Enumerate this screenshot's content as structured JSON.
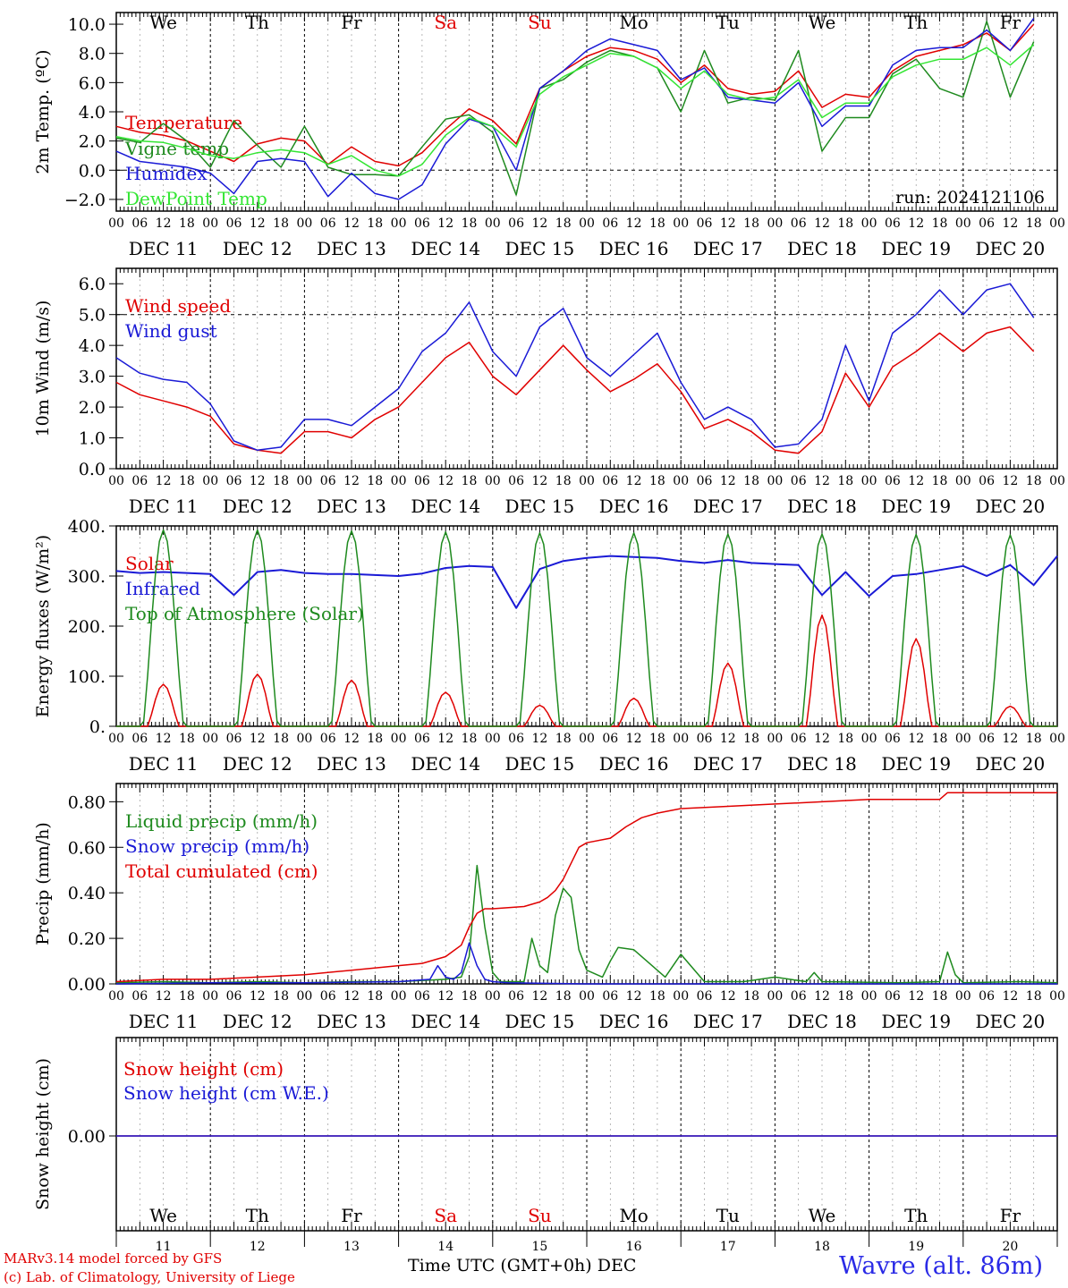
{
  "run_label": "run: 2024121106",
  "days": {
    "weekday_labels": [
      "We",
      "Th",
      "Fr",
      "Sa",
      "Su",
      "Mo",
      "Tu",
      "We",
      "Th",
      "Fr"
    ],
    "weekend_indices": [
      3,
      4
    ],
    "date_labels": [
      "DEC 11",
      "DEC 12",
      "DEC 13",
      "DEC 14",
      "DEC 15",
      "DEC 16",
      "DEC 17",
      "DEC 18",
      "DEC 19",
      "DEC 20"
    ],
    "hour_labels": [
      "00",
      "06",
      "12",
      "18"
    ],
    "day_numbers": [
      "11",
      "12",
      "13",
      "14",
      "15",
      "16",
      "17",
      "18",
      "19",
      "20"
    ]
  },
  "footer": {
    "credit_line1": "MARv3.14 model forced by GFS",
    "credit_line2": "(c) Lab. of Climatology, University of Liege",
    "axis_title": "Time UTC (GMT+0h)",
    "month": "DEC",
    "station": "Wavre (alt. 86m)"
  },
  "colors": {
    "red": "#e00000",
    "blue": "#1a1ad6",
    "dark_green": "#1e8a1e",
    "light_green": "#33e633"
  },
  "chart_data": [
    {
      "type": "line",
      "ylabel": "2m Temp. (ºC)",
      "ylim": [
        -2.8,
        10.8
      ],
      "yticks": [
        "−2.0",
        "0.0",
        "2.0",
        "4.0",
        "6.0",
        "8.0",
        "10.0"
      ],
      "ytick_values": [
        -2,
        0,
        2,
        4,
        6,
        8,
        10
      ],
      "reference_line": 0,
      "x_unit": "hours since DEC 11 00 UTC",
      "series": [
        {
          "name": "Temperature",
          "color": "#e00000",
          "x": [
            0,
            6,
            12,
            18,
            24,
            30,
            36,
            42,
            48,
            54,
            60,
            66,
            72,
            78,
            84,
            90,
            96,
            102,
            108,
            114,
            120,
            126,
            132,
            138,
            144,
            150,
            156,
            162,
            168,
            174,
            180,
            186,
            192,
            198,
            204,
            210,
            216,
            222,
            228,
            234
          ],
          "y": [
            3.0,
            2.6,
            2.4,
            2.0,
            1.3,
            0.6,
            1.8,
            2.2,
            2.0,
            0.4,
            1.6,
            0.6,
            0.3,
            1.2,
            2.8,
            4.2,
            3.4,
            1.8,
            5.6,
            6.8,
            7.8,
            8.4,
            8.2,
            7.6,
            6.0,
            7.2,
            5.6,
            5.2,
            5.4,
            6.8,
            4.3,
            5.2,
            5.0,
            6.8,
            7.8,
            8.2,
            8.6,
            9.4,
            8.2,
            10.0
          ]
        },
        {
          "name": "Vigne temp",
          "color": "#1e8a1e",
          "x": [
            0,
            6,
            12,
            18,
            24,
            30,
            36,
            42,
            48,
            54,
            60,
            66,
            72,
            78,
            84,
            90,
            96,
            102,
            108,
            114,
            120,
            126,
            132,
            138,
            144,
            150,
            156,
            162,
            168,
            174,
            180,
            186,
            192,
            198,
            204,
            210,
            216,
            222,
            228,
            234
          ],
          "y": [
            2.2,
            1.9,
            3.2,
            2.0,
            0.2,
            3.4,
            1.7,
            0.2,
            3.0,
            0.2,
            -0.3,
            -0.3,
            -0.4,
            1.6,
            3.5,
            3.8,
            2.6,
            -1.7,
            5.6,
            6.2,
            7.4,
            8.2,
            7.8,
            7.0,
            4.0,
            8.2,
            4.6,
            5.0,
            4.8,
            8.2,
            1.3,
            3.6,
            3.6,
            6.6,
            7.6,
            5.6,
            5.0,
            10.2,
            5.0,
            8.8
          ]
        },
        {
          "name": "Humidex",
          "color": "#1a1ad6",
          "x": [
            0,
            6,
            12,
            18,
            24,
            30,
            36,
            42,
            48,
            54,
            60,
            66,
            72,
            78,
            84,
            90,
            96,
            102,
            108,
            114,
            120,
            126,
            132,
            138,
            144,
            150,
            156,
            162,
            168,
            174,
            180,
            186,
            192,
            198,
            204,
            210,
            216,
            222,
            228,
            234
          ],
          "y": [
            1.3,
            0.6,
            0.4,
            0.2,
            -0.2,
            -1.6,
            0.6,
            0.8,
            0.6,
            -1.8,
            -0.2,
            -1.6,
            -2.0,
            -1.0,
            1.8,
            3.5,
            3.0,
            0.0,
            5.6,
            6.8,
            8.2,
            9.0,
            8.6,
            8.2,
            6.2,
            7.0,
            5.0,
            4.8,
            4.6,
            6.0,
            3.0,
            4.4,
            4.4,
            7.2,
            8.2,
            8.4,
            8.4,
            9.6,
            8.2,
            10.4
          ]
        },
        {
          "name": "DewPoint Temp",
          "color": "#33e633",
          "x": [
            0,
            6,
            12,
            18,
            24,
            30,
            36,
            42,
            48,
            54,
            60,
            66,
            72,
            78,
            84,
            90,
            96,
            102,
            108,
            114,
            120,
            126,
            132,
            138,
            144,
            150,
            156,
            162,
            168,
            174,
            180,
            186,
            192,
            198,
            204,
            210,
            216,
            222,
            228,
            234
          ],
          "y": [
            2.3,
            2.0,
            1.9,
            1.5,
            1.0,
            0.8,
            1.2,
            1.4,
            1.2,
            0.4,
            1.0,
            0.0,
            -0.4,
            0.4,
            2.4,
            3.6,
            3.0,
            1.6,
            5.2,
            6.4,
            7.2,
            8.0,
            7.8,
            7.0,
            5.6,
            6.8,
            5.2,
            4.8,
            5.0,
            6.2,
            3.6,
            4.6,
            4.6,
            6.4,
            7.2,
            7.6,
            7.6,
            8.4,
            7.2,
            8.6
          ]
        }
      ]
    },
    {
      "type": "line",
      "ylabel": "10m Wind (m/s)",
      "ylim": [
        0,
        6.5
      ],
      "yticks": [
        "0.0",
        "1.0",
        "2.0",
        "3.0",
        "4.0",
        "5.0",
        "6.0"
      ],
      "ytick_values": [
        0,
        1,
        2,
        3,
        4,
        5,
        6
      ],
      "reference_line": 5,
      "x_unit": "hours since DEC 11 00 UTC",
      "series": [
        {
          "name": "Wind speed",
          "color": "#e00000",
          "x": [
            0,
            6,
            12,
            18,
            24,
            30,
            36,
            42,
            48,
            54,
            60,
            66,
            72,
            78,
            84,
            90,
            96,
            102,
            108,
            114,
            120,
            126,
            132,
            138,
            144,
            150,
            156,
            162,
            168,
            174,
            180,
            186,
            192,
            198,
            204,
            210,
            216,
            222,
            228,
            234
          ],
          "y": [
            2.8,
            2.4,
            2.2,
            2.0,
            1.7,
            0.8,
            0.6,
            0.5,
            1.2,
            1.2,
            1.0,
            1.6,
            2.0,
            2.8,
            3.6,
            4.1,
            3.0,
            2.4,
            3.2,
            4.0,
            3.2,
            2.5,
            2.9,
            3.4,
            2.5,
            1.3,
            1.6,
            1.2,
            0.6,
            0.5,
            1.2,
            3.1,
            2.0,
            3.3,
            3.8,
            4.4,
            3.8,
            4.4,
            4.6,
            3.8
          ]
        },
        {
          "name": "Wind gust",
          "color": "#1a1ad6",
          "x": [
            0,
            6,
            12,
            18,
            24,
            30,
            36,
            42,
            48,
            54,
            60,
            66,
            72,
            78,
            84,
            90,
            96,
            102,
            108,
            114,
            120,
            126,
            132,
            138,
            144,
            150,
            156,
            162,
            168,
            174,
            180,
            186,
            192,
            198,
            204,
            210,
            216,
            222,
            228,
            234
          ],
          "y": [
            3.6,
            3.1,
            2.9,
            2.8,
            2.1,
            0.9,
            0.6,
            0.7,
            1.6,
            1.6,
            1.4,
            2.0,
            2.6,
            3.8,
            4.4,
            5.4,
            3.8,
            3.0,
            4.6,
            5.2,
            3.6,
            3.0,
            3.7,
            4.4,
            2.8,
            1.6,
            2.0,
            1.6,
            0.7,
            0.8,
            1.6,
            4.0,
            2.2,
            4.4,
            5.0,
            5.8,
            5.0,
            5.8,
            6.0,
            4.9
          ]
        }
      ]
    },
    {
      "type": "line",
      "ylabel": "Energy fluxes (W/m²)",
      "ylim": [
        0,
        400
      ],
      "yticks": [
        "0.",
        "100.",
        "200.",
        "300.",
        "400."
      ],
      "ytick_values": [
        0,
        100,
        200,
        300,
        400
      ],
      "x_unit": "hours since DEC 11 00 UTC",
      "series": [
        {
          "name": "Solar",
          "color": "#e00000",
          "daily_peak_hour": 12,
          "daily_peak_values": [
            84,
            104,
            92,
            68,
            42,
            56,
            126,
            222,
            175,
            40
          ]
        },
        {
          "name": "Infrared",
          "color": "#1a1ad6",
          "x": [
            0,
            6,
            12,
            18,
            24,
            30,
            36,
            42,
            48,
            54,
            60,
            66,
            72,
            78,
            84,
            90,
            96,
            102,
            108,
            114,
            120,
            126,
            132,
            138,
            144,
            150,
            156,
            162,
            168,
            174,
            180,
            186,
            192,
            198,
            204,
            210,
            216,
            222,
            228,
            234,
            240
          ],
          "y": [
            310,
            306,
            308,
            306,
            304,
            262,
            308,
            312,
            306,
            304,
            304,
            302,
            300,
            305,
            316,
            320,
            318,
            236,
            314,
            330,
            336,
            340,
            338,
            336,
            330,
            326,
            332,
            326,
            324,
            322,
            262,
            308,
            260,
            300,
            304,
            312,
            320,
            300,
            322,
            282,
            340
          ]
        },
        {
          "name": "Top of Atmosphere (Solar)",
          "color": "#1e8a1e",
          "daily_peak_hour": 12,
          "daily_peak_values": [
            392,
            392,
            390,
            388,
            386,
            386,
            384,
            384,
            383,
            382
          ]
        }
      ]
    },
    {
      "type": "line",
      "ylabel": "Precip (mm/h)",
      "ylim": [
        0,
        0.88
      ],
      "yticks": [
        "0.00",
        "0.20",
        "0.40",
        "0.60",
        "0.80"
      ],
      "ytick_values": [
        0,
        0.2,
        0.4,
        0.6,
        0.8
      ],
      "x_unit": "hours since DEC 11 00 UTC",
      "series": [
        {
          "name": "Liquid precip (mm/h)",
          "color": "#1e8a1e",
          "x": [
            0,
            12,
            24,
            36,
            48,
            60,
            72,
            84,
            88,
            90,
            92,
            94,
            96,
            98,
            104,
            106,
            108,
            110,
            112,
            114,
            116,
            118,
            120,
            124,
            126,
            128,
            132,
            136,
            140,
            144,
            150,
            160,
            168,
            176,
            178,
            180,
            200,
            210,
            212,
            214,
            216,
            230,
            240
          ],
          "y": [
            0.005,
            0.01,
            0.005,
            0.01,
            0.005,
            0.01,
            0.01,
            0.02,
            0.03,
            0.12,
            0.52,
            0.25,
            0.05,
            0.01,
            0.01,
            0.2,
            0.08,
            0.05,
            0.3,
            0.42,
            0.38,
            0.15,
            0.06,
            0.03,
            0.1,
            0.16,
            0.15,
            0.09,
            0.03,
            0.13,
            0.01,
            0.01,
            0.03,
            0.01,
            0.05,
            0.01,
            0.005,
            0.01,
            0.14,
            0.04,
            0.005,
            0.01,
            0.005
          ]
        },
        {
          "name": "Snow precip (mm/h)",
          "color": "#1a1ad6",
          "x": [
            0,
            24,
            48,
            72,
            80,
            82,
            84,
            86,
            88,
            90,
            92,
            94,
            96,
            100,
            120,
            168,
            240
          ],
          "y": [
            0.0,
            0.005,
            0.005,
            0.01,
            0.02,
            0.08,
            0.03,
            0.02,
            0.05,
            0.18,
            0.08,
            0.02,
            0.01,
            0.005,
            0.0,
            0.0,
            0.0
          ]
        },
        {
          "name": "Total cumulated (cm)",
          "color": "#e00000",
          "x": [
            0,
            12,
            24,
            36,
            48,
            60,
            72,
            78,
            84,
            88,
            90,
            92,
            94,
            96,
            104,
            108,
            110,
            112,
            114,
            116,
            118,
            120,
            126,
            130,
            134,
            138,
            144,
            156,
            168,
            180,
            192,
            204,
            210,
            212,
            216,
            228,
            240
          ],
          "y": [
            0.01,
            0.02,
            0.02,
            0.03,
            0.04,
            0.06,
            0.08,
            0.09,
            0.12,
            0.17,
            0.25,
            0.31,
            0.33,
            0.33,
            0.34,
            0.36,
            0.38,
            0.41,
            0.46,
            0.53,
            0.6,
            0.62,
            0.64,
            0.69,
            0.73,
            0.75,
            0.77,
            0.78,
            0.79,
            0.8,
            0.81,
            0.81,
            0.81,
            0.84,
            0.84,
            0.84,
            0.84
          ]
        }
      ]
    },
    {
      "type": "line",
      "ylabel": "Snow height (cm)",
      "yticks": [
        "0.00"
      ],
      "x_unit": "hours since DEC 11 00 UTC",
      "series": [
        {
          "name": "Snow height (cm)",
          "color": "#e00000",
          "x": [
            0,
            240
          ],
          "y": [
            0,
            0
          ]
        },
        {
          "name": "Snow height (cm W.E.)",
          "color": "#1a1ad6",
          "x": [
            0,
            240
          ],
          "y": [
            0,
            0
          ]
        }
      ]
    }
  ]
}
